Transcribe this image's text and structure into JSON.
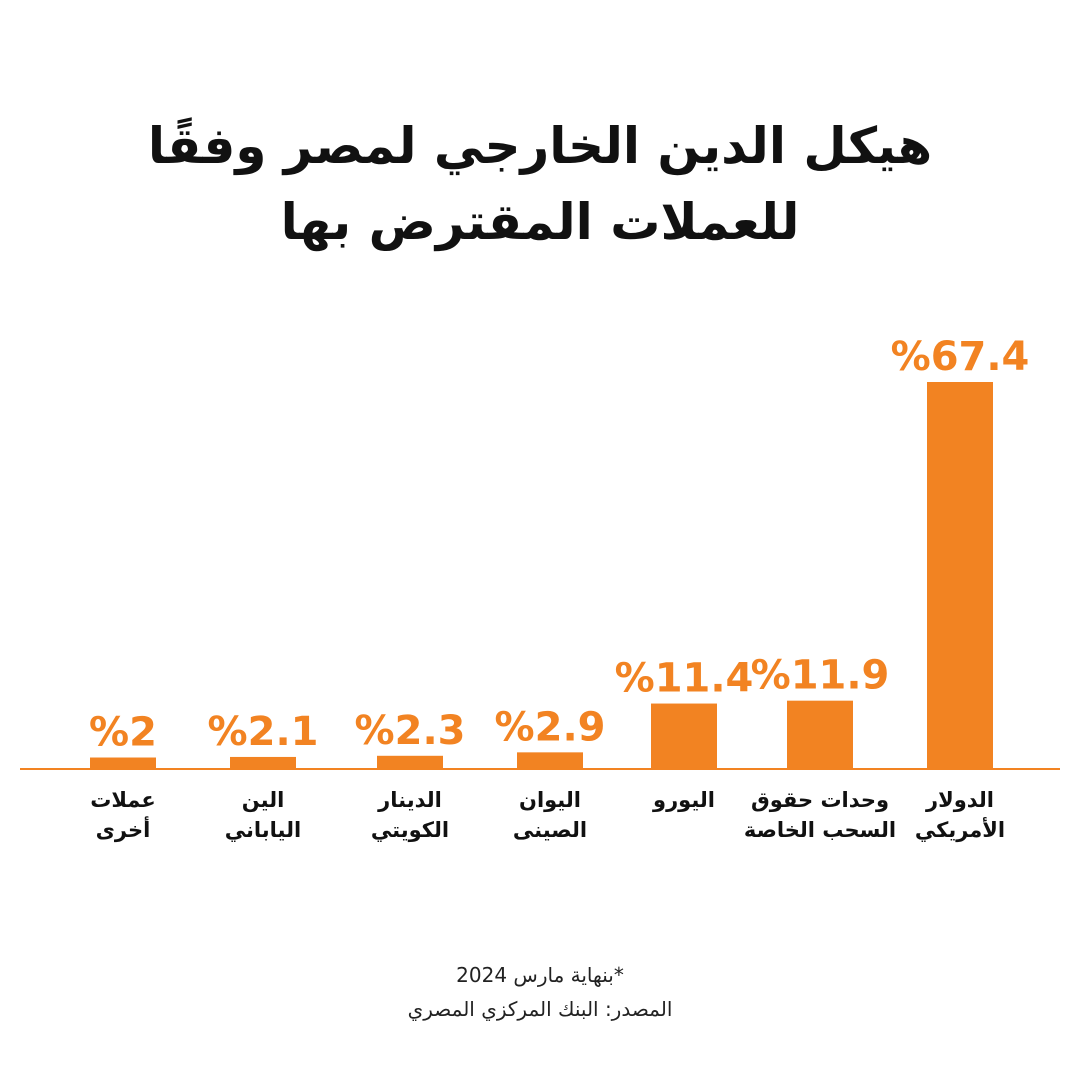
{
  "title": "هيكل الدين الخارجي لمصر وفقًا للعملات المقترض بها",
  "colors": {
    "bar": "#F28322",
    "axis": "#F28322",
    "text": "#111111"
  },
  "chart_data": {
    "type": "bar",
    "orientation": "vertical",
    "direction": "rtl",
    "categories": [
      [
        "الدولار",
        "الأمريكي"
      ],
      [
        "وحدات حقوق",
        "السحب الخاصة"
      ],
      [
        "اليورو"
      ],
      [
        "اليوان",
        "الصينى"
      ],
      [
        "الدينار",
        "الكويتي"
      ],
      [
        "الين",
        "الياباني"
      ],
      [
        "عملات",
        "أخرى"
      ]
    ],
    "values": [
      67.4,
      11.9,
      11.4,
      2.9,
      2.3,
      2.1,
      2
    ],
    "value_labels": [
      "%67.4",
      "%11.9",
      "%11.4",
      "%2.9",
      "%2.3",
      "%2.1",
      "%2"
    ],
    "unit": "%",
    "grid": false,
    "legend": "none"
  },
  "footnotes": {
    "note": "*بنهاية مارس 2024",
    "source": "المصدر: البنك المركزي المصري"
  }
}
